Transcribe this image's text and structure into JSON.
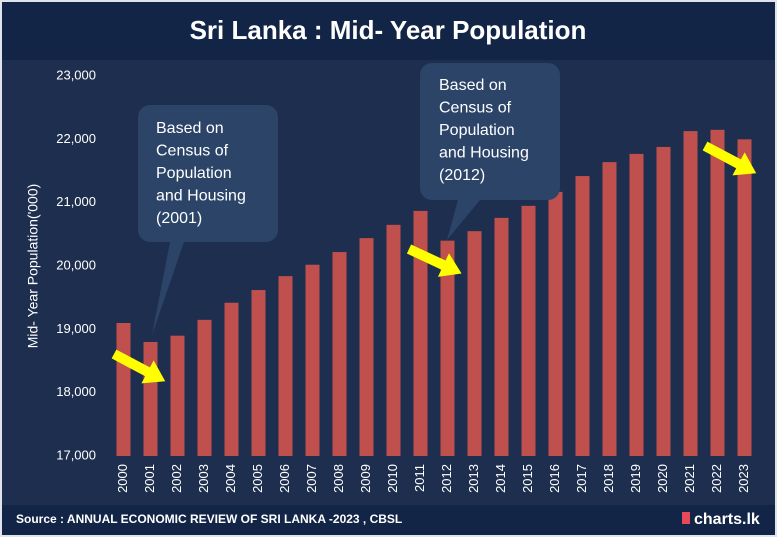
{
  "chart_data": {
    "type": "bar",
    "title": "Sri Lanka : Mid- Year Population",
    "y_label": "Mid- Year Population('000)",
    "categories": [
      "2000",
      "2001",
      "2002",
      "2003",
      "2004",
      "2005",
      "2006",
      "2007",
      "2008",
      "2009",
      "2010",
      "2011",
      "2012",
      "2013",
      "2014",
      "2015",
      "2016",
      "2017",
      "2018",
      "2019",
      "2020",
      "2021",
      "2022",
      "2023"
    ],
    "values": [
      19100,
      18800,
      18900,
      19150,
      19420,
      19620,
      19840,
      20020,
      20220,
      20440,
      20650,
      20870,
      20400,
      20550,
      20760,
      20950,
      21170,
      21420,
      21640,
      21770,
      21880,
      22130,
      22150,
      22000
    ],
    "color": "#c0504d",
    "ylim": [
      17000,
      23000
    ],
    "yticks": [
      {
        "value": 17000,
        "label": "17,000"
      },
      {
        "value": 18000,
        "label": "18,000"
      },
      {
        "value": 19000,
        "label": "19,000"
      },
      {
        "value": 20000,
        "label": "20,000"
      },
      {
        "value": 21000,
        "label": "21,000"
      },
      {
        "value": 22000,
        "label": "22,000"
      },
      {
        "value": 23000,
        "label": "23,000"
      }
    ],
    "grid": false,
    "annotations": [
      {
        "lines": [
          "Based on",
          "Census of",
          "Population",
          "and Housing",
          "(2001)"
        ]
      },
      {
        "lines": [
          "Based on",
          "Census of",
          "Population",
          "and Housing",
          "(2012)"
        ]
      }
    ],
    "source": "Source : ANNUAL ECONOMIC REVIEW OF SRI LANKA -2023 , CBSL",
    "brand": "charts.lk"
  }
}
